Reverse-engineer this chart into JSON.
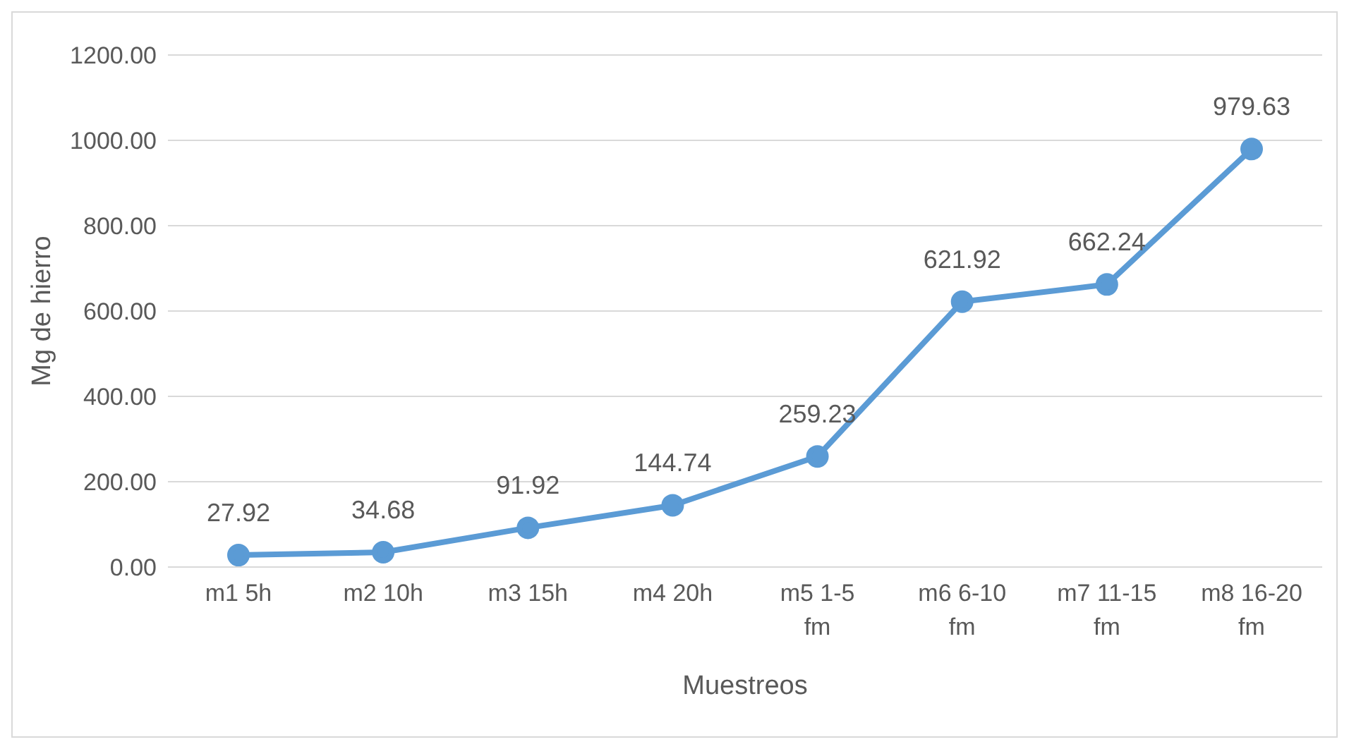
{
  "chart_data": {
    "type": "line",
    "xlabel": "Muestreos",
    "ylabel": "Mg de hierro",
    "categories": [
      "m1 5h",
      "m2 10h",
      "m3 15h",
      "m4 20h",
      "m5 1-5 fm",
      "m6 6-10 fm",
      "m7 11-15 fm",
      "m8 16-20 fm"
    ],
    "series": [
      {
        "color": "#5b9bd5",
        "values": [
          27.92,
          34.68,
          91.92,
          144.74,
          259.23,
          621.92,
          662.24,
          979.63
        ]
      }
    ],
    "ylim": [
      0,
      1200
    ],
    "yticks": [
      {
        "value": 0,
        "label": "0.00"
      },
      {
        "value": 200,
        "label": "200.00"
      },
      {
        "value": 400,
        "label": "400.00"
      },
      {
        "value": 600,
        "label": "600.00"
      },
      {
        "value": 800,
        "label": "800.00"
      },
      {
        "value": 1000,
        "label": "1000.00"
      },
      {
        "value": 1200,
        "label": "1200.00"
      }
    ],
    "grid": "y",
    "marker": "circle",
    "line_style": "solid",
    "data_labels": true,
    "legend": false
  }
}
